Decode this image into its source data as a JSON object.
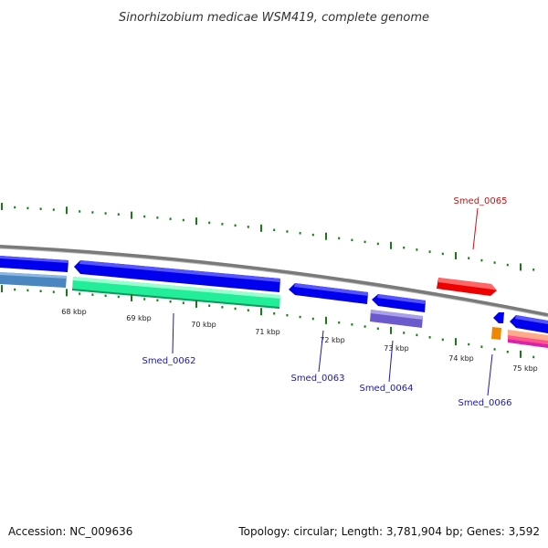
{
  "title": "Sinorhizobium medicae WSM419, complete genome",
  "footer": {
    "accession": "Accession: NC_009636",
    "summary": "Topology: circular; Length: 3,781,904 bp; Genes: 3,592"
  },
  "ruler": {
    "labels": [
      "68 kbp",
      "69 kbp",
      "70 kbp",
      "71 kbp",
      "72 kbp",
      "73 kbp",
      "74 kbp",
      "75 kbp"
    ]
  },
  "gene_labels": [
    {
      "name": "Smed_0062",
      "color": "#1a1aaa"
    },
    {
      "name": "Smed_0063",
      "color": "#1a1aaa"
    },
    {
      "name": "Smed_0064",
      "color": "#1a1aaa"
    },
    {
      "name": "Smed_0065",
      "color": "#cc1111"
    },
    {
      "name": "Smed_0066",
      "color": "#1a1aaa"
    }
  ],
  "colors": {
    "backbone": "#7a7a7a",
    "forward_gene": "#ee0000",
    "reverse_gene": "#0000ee",
    "rna_gene": "#33ffaa",
    "tick_major": "#1a7a1a",
    "tick_minor": "#1a7a1a"
  }
}
